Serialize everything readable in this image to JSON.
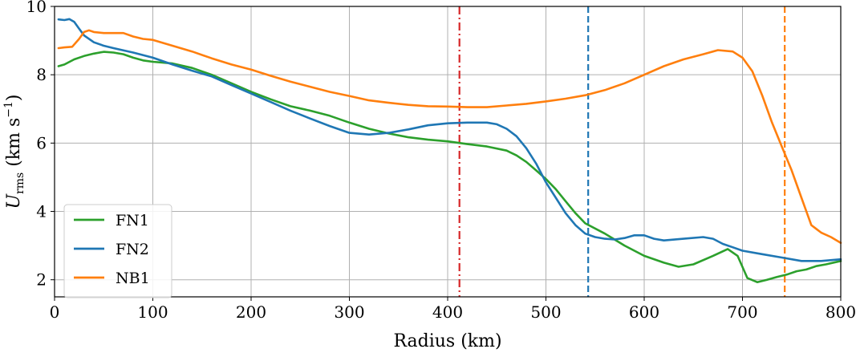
{
  "chart_data": {
    "type": "line",
    "xlabel": "Radius (km)",
    "ylabel": "U",
    "ylabel_sub": "rms",
    "ylabel_units_open": " (km s",
    "ylabel_units_sup": "−1",
    "ylabel_units_close": ")",
    "xlim": [
      0,
      800
    ],
    "ylim": [
      1.5,
      10
    ],
    "xticks": [
      0,
      100,
      200,
      300,
      400,
      500,
      600,
      700,
      800
    ],
    "yticks": [
      2,
      4,
      6,
      8,
      10
    ],
    "grid": true,
    "legend_position": "lower-left",
    "series": [
      {
        "name": "FN1",
        "color": "#2ca02c",
        "x": [
          4,
          10,
          20,
          30,
          40,
          50,
          60,
          70,
          80,
          90,
          100,
          120,
          140,
          160,
          180,
          200,
          220,
          240,
          260,
          280,
          300,
          320,
          340,
          360,
          380,
          400,
          420,
          440,
          460,
          470,
          480,
          490,
          500,
          510,
          520,
          530,
          540,
          560,
          580,
          600,
          620,
          635,
          650,
          670,
          685,
          695,
          705,
          715,
          725,
          735,
          745,
          755,
          765,
          775,
          785,
          800
        ],
        "y": [
          8.25,
          8.3,
          8.45,
          8.55,
          8.62,
          8.67,
          8.65,
          8.6,
          8.5,
          8.42,
          8.38,
          8.33,
          8.2,
          8.0,
          7.75,
          7.5,
          7.28,
          7.08,
          6.95,
          6.8,
          6.6,
          6.42,
          6.28,
          6.17,
          6.1,
          6.05,
          5.97,
          5.9,
          5.78,
          5.64,
          5.45,
          5.2,
          4.95,
          4.65,
          4.3,
          3.95,
          3.65,
          3.35,
          3.0,
          2.7,
          2.5,
          2.38,
          2.45,
          2.7,
          2.9,
          2.7,
          2.05,
          1.93,
          2.0,
          2.08,
          2.15,
          2.25,
          2.3,
          2.4,
          2.45,
          2.55
        ]
      },
      {
        "name": "FN2",
        "color": "#1f77b4",
        "x": [
          4,
          10,
          15,
          20,
          25,
          30,
          40,
          50,
          60,
          80,
          100,
          120,
          140,
          160,
          180,
          200,
          220,
          240,
          260,
          280,
          300,
          320,
          340,
          360,
          380,
          400,
          420,
          440,
          450,
          460,
          470,
          480,
          490,
          500,
          510,
          520,
          530,
          540,
          550,
          560,
          570,
          580,
          590,
          600,
          610,
          620,
          640,
          660,
          670,
          680,
          690,
          700,
          720,
          740,
          760,
          780,
          800
        ],
        "y": [
          9.62,
          9.6,
          9.63,
          9.55,
          9.35,
          9.15,
          8.95,
          8.85,
          8.78,
          8.65,
          8.5,
          8.3,
          8.12,
          7.95,
          7.7,
          7.45,
          7.2,
          6.95,
          6.72,
          6.5,
          6.3,
          6.25,
          6.3,
          6.4,
          6.52,
          6.58,
          6.6,
          6.6,
          6.55,
          6.42,
          6.2,
          5.85,
          5.4,
          4.85,
          4.4,
          3.95,
          3.6,
          3.35,
          3.25,
          3.2,
          3.18,
          3.22,
          3.3,
          3.3,
          3.2,
          3.15,
          3.2,
          3.25,
          3.2,
          3.05,
          2.95,
          2.85,
          2.75,
          2.65,
          2.55,
          2.55,
          2.6
        ]
      },
      {
        "name": "NB1",
        "color": "#ff7f0e",
        "x": [
          4,
          10,
          18,
          25,
          30,
          35,
          40,
          50,
          60,
          70,
          80,
          90,
          100,
          120,
          140,
          160,
          180,
          200,
          220,
          240,
          260,
          280,
          300,
          320,
          340,
          360,
          380,
          400,
          420,
          440,
          460,
          480,
          500,
          520,
          540,
          560,
          580,
          600,
          620,
          640,
          660,
          675,
          690,
          700,
          710,
          720,
          730,
          740,
          750,
          760,
          770,
          780,
          790,
          800
        ],
        "y": [
          8.78,
          8.8,
          8.82,
          9.05,
          9.25,
          9.3,
          9.25,
          9.22,
          9.22,
          9.22,
          9.12,
          9.05,
          9.02,
          8.85,
          8.68,
          8.48,
          8.3,
          8.15,
          7.97,
          7.8,
          7.65,
          7.5,
          7.38,
          7.25,
          7.18,
          7.12,
          7.08,
          7.07,
          7.05,
          7.05,
          7.1,
          7.15,
          7.22,
          7.3,
          7.4,
          7.55,
          7.75,
          8.0,
          8.25,
          8.45,
          8.6,
          8.72,
          8.68,
          8.5,
          8.1,
          7.4,
          6.6,
          5.9,
          5.2,
          4.4,
          3.6,
          3.38,
          3.25,
          3.08
        ]
      }
    ],
    "vlines": [
      {
        "x": 412,
        "color": "#d62728",
        "style": "dashdot"
      },
      {
        "x": 543,
        "color": "#1f77b4",
        "style": "dashed"
      },
      {
        "x": 743,
        "color": "#ff7f0e",
        "style": "dashed"
      }
    ]
  }
}
